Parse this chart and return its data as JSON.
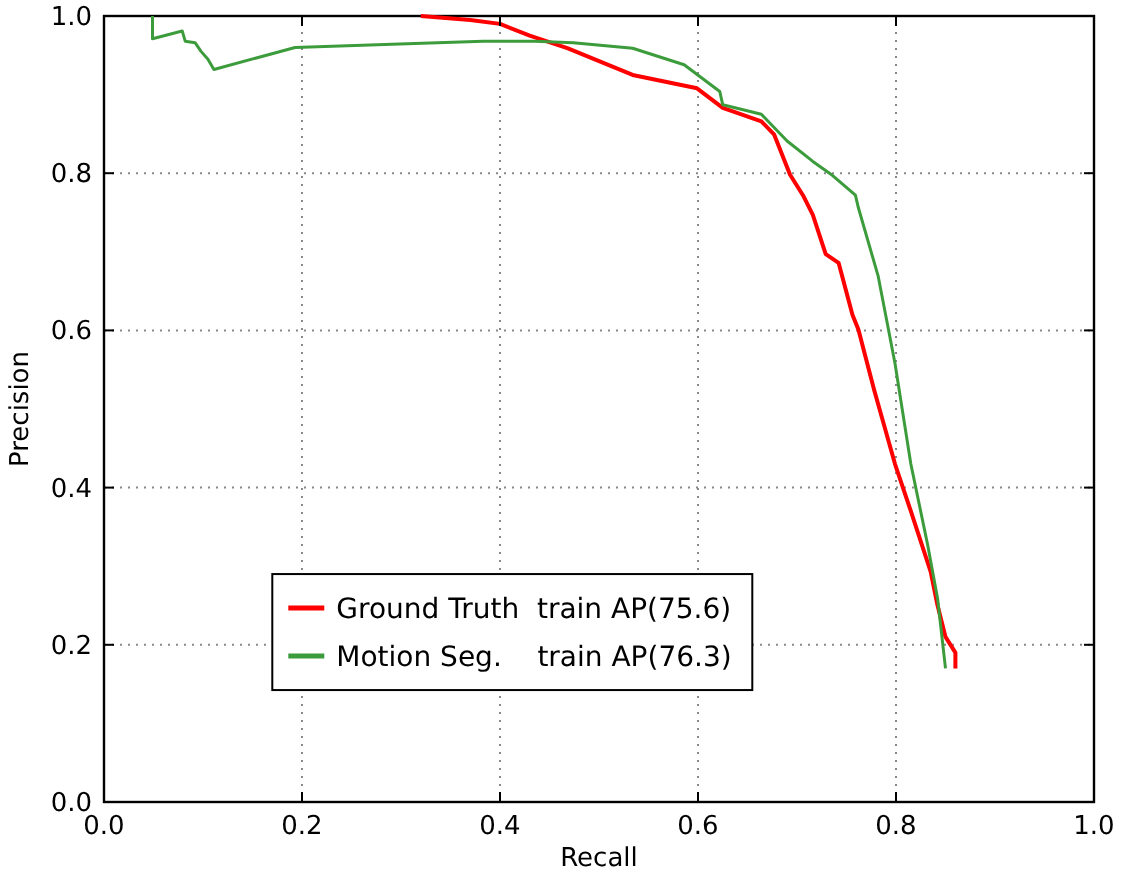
{
  "chart_data": {
    "type": "line",
    "xlabel": "Recall",
    "ylabel": "Precision",
    "xlim": [
      0,
      1
    ],
    "ylim": [
      0,
      1
    ],
    "xticks": [
      {
        "value": 0,
        "label": "0.0"
      },
      {
        "value": 0.2,
        "label": "0.2"
      },
      {
        "value": 0.4,
        "label": "0.4"
      },
      {
        "value": 0.6,
        "label": "0.6"
      },
      {
        "value": 0.8,
        "label": "0.8"
      },
      {
        "value": 1,
        "label": "1.0"
      }
    ],
    "yticks": [
      {
        "value": 0,
        "label": "0.0"
      },
      {
        "value": 0.2,
        "label": "0.2"
      },
      {
        "value": 0.4,
        "label": "0.4"
      },
      {
        "value": 0.6,
        "label": "0.6"
      },
      {
        "value": 0.8,
        "label": "0.8"
      },
      {
        "value": 1,
        "label": "1.0"
      }
    ],
    "grid": true,
    "legend": "bottom left",
    "marker": "none",
    "line_style": "solid",
    "series": [
      {
        "name": "Ground Truth  train AP(75.6)",
        "color": "#ff0000",
        "x": [
          0.32,
          0.37,
          0.4,
          0.43,
          0.468,
          0.534,
          0.599,
          0.625,
          0.664,
          0.677,
          0.693,
          0.706,
          0.716,
          0.729,
          0.742,
          0.756,
          0.762,
          0.778,
          0.799,
          0.815,
          0.835,
          0.842,
          0.85,
          0.86,
          0.86
        ],
        "values": [
          1.0,
          0.995,
          0.99,
          0.975,
          0.959,
          0.925,
          0.908,
          0.883,
          0.866,
          0.849,
          0.798,
          0.772,
          0.747,
          0.697,
          0.686,
          0.62,
          0.601,
          0.524,
          0.43,
          0.37,
          0.293,
          0.25,
          0.21,
          0.19,
          0.17
        ]
      },
      {
        "name": "Motion Seg.    train AP(76.3)",
        "color": "#3c9c3c",
        "x": [
          0.049,
          0.049,
          0.079,
          0.082,
          0.092,
          0.098,
          0.105,
          0.111,
          0.193,
          0.291,
          0.383,
          0.435,
          0.474,
          0.534,
          0.586,
          0.622,
          0.625,
          0.664,
          0.69,
          0.716,
          0.736,
          0.759,
          0.762,
          0.782,
          0.799,
          0.815,
          0.832,
          0.842,
          0.85
        ],
        "values": [
          1.0,
          0.971,
          0.981,
          0.968,
          0.966,
          0.955,
          0.945,
          0.932,
          0.96,
          0.964,
          0.968,
          0.968,
          0.966,
          0.959,
          0.938,
          0.904,
          0.887,
          0.875,
          0.841,
          0.815,
          0.797,
          0.772,
          0.756,
          0.669,
          0.558,
          0.43,
          0.327,
          0.259,
          0.17
        ]
      }
    ]
  }
}
